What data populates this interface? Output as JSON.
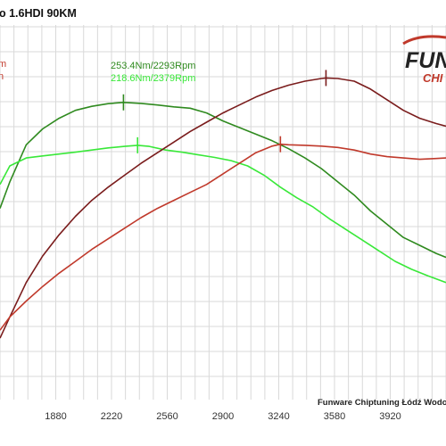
{
  "title": "o 1.6HDI 90KM",
  "logo": {
    "word_top": "FUN",
    "word_bottom": "CHI"
  },
  "footer": "Funware Chiptuning Łódź Wodorowa",
  "colors": {
    "power_stock": "#c0392b",
    "power_tuned": "#7a1c1c",
    "torque_stock": "#39e839",
    "torque_tuned": "#2f8a1f",
    "grid": "#d9d9d9",
    "axis_text": "#333333"
  },
  "chart_data": {
    "type": "line",
    "x_ticks": [
      1880,
      2220,
      2560,
      2900,
      3240,
      3580,
      3920
    ],
    "xlim": [
      1540,
      4260
    ],
    "ylim": [
      0,
      100
    ],
    "grid": true,
    "annotations": [
      {
        "text": "253.4Nm/2293Rpm",
        "color": "#2f8a1f"
      },
      {
        "text": "218.6Nm/2379Rpm",
        "color": "#39e839"
      }
    ],
    "series": [
      {
        "color": "#2f8a1f",
        "points": [
          [
            1540,
            52
          ],
          [
            1600,
            62
          ],
          [
            1700,
            76
          ],
          [
            1800,
            82
          ],
          [
            1900,
            86
          ],
          [
            2000,
            89
          ],
          [
            2100,
            90.5
          ],
          [
            2200,
            91.5
          ],
          [
            2293,
            92
          ],
          [
            2400,
            91.6
          ],
          [
            2500,
            91
          ],
          [
            2600,
            90.3
          ],
          [
            2700,
            89.8
          ],
          [
            2800,
            88
          ],
          [
            2900,
            85
          ],
          [
            3000,
            82.5
          ],
          [
            3100,
            80
          ],
          [
            3200,
            77.5
          ],
          [
            3300,
            74.5
          ],
          [
            3400,
            71
          ],
          [
            3500,
            67
          ],
          [
            3600,
            62
          ],
          [
            3700,
            57
          ],
          [
            3800,
            51
          ],
          [
            3900,
            46
          ],
          [
            4000,
            41
          ],
          [
            4100,
            38
          ],
          [
            4200,
            35
          ],
          [
            4260,
            33.5
          ]
        ]
      },
      {
        "color": "#39e839",
        "points": [
          [
            1540,
            61
          ],
          [
            1600,
            68
          ],
          [
            1700,
            71
          ],
          [
            1800,
            71.8
          ],
          [
            1900,
            72.5
          ],
          [
            2000,
            73.2
          ],
          [
            2100,
            74
          ],
          [
            2200,
            74.8
          ],
          [
            2300,
            75.4
          ],
          [
            2379,
            75.8
          ],
          [
            2450,
            75.4
          ],
          [
            2550,
            74
          ],
          [
            2650,
            73.2
          ],
          [
            2750,
            72.2
          ],
          [
            2850,
            71.2
          ],
          [
            2950,
            70
          ],
          [
            3050,
            68
          ],
          [
            3150,
            64.5
          ],
          [
            3250,
            60
          ],
          [
            3350,
            56
          ],
          [
            3450,
            52.5
          ],
          [
            3550,
            48
          ],
          [
            3650,
            44
          ],
          [
            3750,
            40
          ],
          [
            3850,
            36
          ],
          [
            3950,
            32
          ],
          [
            4050,
            29
          ],
          [
            4150,
            26.5
          ],
          [
            4260,
            24
          ]
        ]
      },
      {
        "color": "#7a1c1c",
        "points": [
          [
            1540,
            3
          ],
          [
            1600,
            11
          ],
          [
            1700,
            24
          ],
          [
            1800,
            34
          ],
          [
            1900,
            42
          ],
          [
            2000,
            49
          ],
          [
            2100,
            55
          ],
          [
            2200,
            60
          ],
          [
            2300,
            64.5
          ],
          [
            2400,
            69
          ],
          [
            2500,
            73
          ],
          [
            2600,
            77
          ],
          [
            2700,
            81
          ],
          [
            2800,
            84.5
          ],
          [
            2900,
            88
          ],
          [
            3000,
            91
          ],
          [
            3100,
            94
          ],
          [
            3200,
            96.5
          ],
          [
            3300,
            98.5
          ],
          [
            3400,
            100
          ],
          [
            3500,
            101
          ],
          [
            3528,
            101.2
          ],
          [
            3600,
            101
          ],
          [
            3700,
            100
          ],
          [
            3800,
            97
          ],
          [
            3900,
            93
          ],
          [
            4000,
            89
          ],
          [
            4100,
            86
          ],
          [
            4200,
            84
          ],
          [
            4260,
            83
          ]
        ]
      },
      {
        "color": "#c0392b",
        "points": [
          [
            1540,
            6
          ],
          [
            1600,
            11
          ],
          [
            1700,
            17
          ],
          [
            1800,
            22.5
          ],
          [
            1900,
            27.5
          ],
          [
            2000,
            32
          ],
          [
            2100,
            36.5
          ],
          [
            2200,
            40.5
          ],
          [
            2300,
            44.5
          ],
          [
            2400,
            48.5
          ],
          [
            2500,
            52
          ],
          [
            2600,
            55
          ],
          [
            2700,
            58
          ],
          [
            2800,
            61
          ],
          [
            2900,
            65
          ],
          [
            3000,
            69
          ],
          [
            3100,
            73
          ],
          [
            3200,
            75.5
          ],
          [
            3250,
            76.2
          ],
          [
            3300,
            76
          ],
          [
            3400,
            75.8
          ],
          [
            3500,
            75.5
          ],
          [
            3600,
            75
          ],
          [
            3700,
            74
          ],
          [
            3800,
            72.5
          ],
          [
            3900,
            71.5
          ],
          [
            4000,
            71
          ],
          [
            4100,
            70.5
          ],
          [
            4200,
            70.8
          ],
          [
            4260,
            71
          ]
        ]
      }
    ],
    "peaks": [
      {
        "x": 2293,
        "y": 92,
        "color": "#2f8a1f"
      },
      {
        "x": 2379,
        "y": 75.8,
        "color": "#39e839"
      },
      {
        "x": 3528,
        "y": 101.2,
        "color": "#7a1c1c"
      },
      {
        "x": 3250,
        "y": 76.2,
        "color": "#c0392b"
      }
    ]
  }
}
